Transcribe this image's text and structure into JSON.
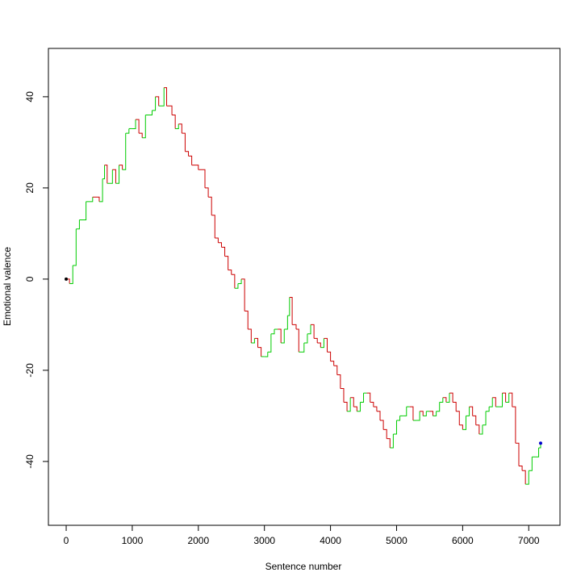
{
  "chart_data": {
    "type": "line",
    "x_label": "Sentence number",
    "y_label": "Emotional valence",
    "x": [
      0,
      50,
      100,
      150,
      200,
      300,
      400,
      500,
      550,
      580,
      620,
      700,
      750,
      800,
      850,
      900,
      950,
      1000,
      1050,
      1100,
      1150,
      1200,
      1300,
      1350,
      1400,
      1480,
      1520,
      1600,
      1650,
      1700,
      1750,
      1800,
      1850,
      1900,
      2000,
      2100,
      2150,
      2200,
      2250,
      2300,
      2350,
      2400,
      2450,
      2500,
      2550,
      2600,
      2650,
      2700,
      2750,
      2800,
      2850,
      2900,
      2950,
      3000,
      3050,
      3100,
      3150,
      3200,
      3250,
      3300,
      3350,
      3380,
      3420,
      3480,
      3520,
      3600,
      3650,
      3700,
      3750,
      3800,
      3850,
      3900,
      3950,
      4000,
      4050,
      4100,
      4150,
      4200,
      4250,
      4300,
      4350,
      4400,
      4450,
      4500,
      4550,
      4600,
      4650,
      4700,
      4750,
      4800,
      4850,
      4900,
      4950,
      5000,
      5050,
      5100,
      5150,
      5200,
      5250,
      5300,
      5350,
      5400,
      5450,
      5500,
      5550,
      5600,
      5650,
      5700,
      5750,
      5800,
      5850,
      5900,
      5950,
      6000,
      6050,
      6100,
      6150,
      6200,
      6250,
      6300,
      6350,
      6400,
      6450,
      6500,
      6550,
      6600,
      6650,
      6700,
      6750,
      6800,
      6850,
      6900,
      6950,
      7000,
      7050,
      7100,
      7150,
      7180
    ],
    "series": [
      {
        "values": [
          0,
          -1,
          3,
          11,
          13,
          17,
          18,
          17,
          22,
          25,
          21,
          24,
          21,
          25,
          24,
          32,
          33,
          33,
          35,
          32,
          31,
          36,
          37,
          40,
          38,
          42,
          38,
          36,
          33,
          34,
          32,
          28,
          27,
          25,
          24,
          20,
          18,
          14,
          9,
          8,
          7,
          5,
          2,
          1,
          -2,
          -1,
          0,
          -7,
          -11,
          -14,
          -13,
          -15,
          -17,
          -17,
          -16,
          -12,
          -11,
          -11,
          -14,
          -11,
          -8,
          -4,
          -10,
          -11,
          -16,
          -14,
          -12,
          -10,
          -13,
          -14,
          -15,
          -13,
          -16,
          -18,
          -19,
          -21,
          -24,
          -27,
          -29,
          -26,
          -28,
          -29,
          -27,
          -25,
          -25,
          -27,
          -28,
          -29,
          -31,
          -33,
          -35,
          -37,
          -34,
          -31,
          -30,
          -30,
          -28,
          -28,
          -31,
          -31,
          -29,
          -30,
          -29,
          -29,
          -30,
          -29,
          -27,
          -26,
          -27,
          -25,
          -27,
          -29,
          -32,
          -33,
          -30,
          -28,
          -30,
          -32,
          -34,
          -32,
          -29,
          -28,
          -26,
          -28,
          -28,
          -25,
          -27,
          -25,
          -28,
          -36,
          -41,
          -42,
          -45,
          -42,
          -39,
          -39,
          -37,
          -36
        ]
      }
    ],
    "up_color": "#00cc00",
    "down_color": "#cc0000",
    "start_color": "#000000",
    "end_color": "#0000cc",
    "xlim": [
      -269,
      7473
    ],
    "ylim": [
      -54,
      50.6
    ],
    "xticks": [
      0,
      1000,
      2000,
      3000,
      4000,
      5000,
      6000,
      7000
    ],
    "yticks": [
      -40,
      -20,
      0,
      20,
      40
    ]
  }
}
